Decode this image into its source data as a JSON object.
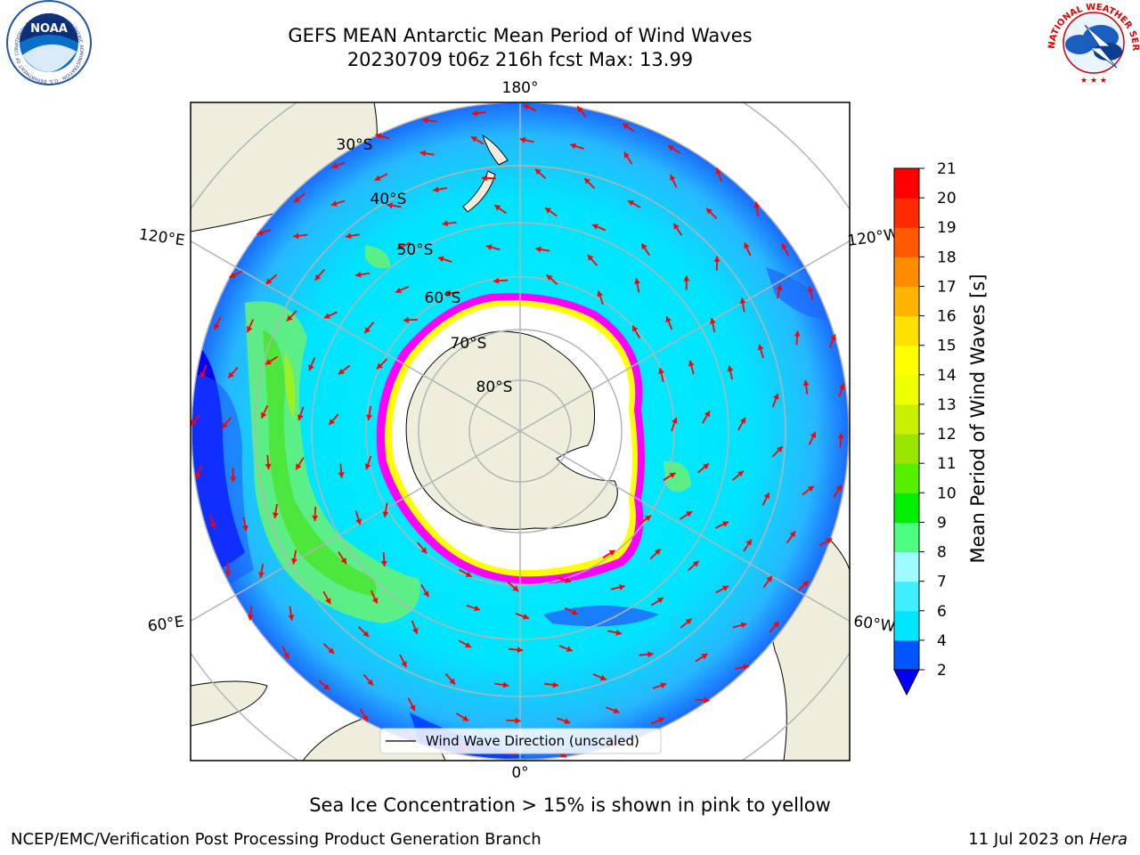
{
  "title": {
    "line1": "GEFS MEAN Antarctic Mean Period of Wind Waves",
    "line2": "20230709 t06z 216h fcst   Max: 13.99"
  },
  "map": {
    "longitude_labels": [
      "180°",
      "120°E",
      "120°W",
      "60°E",
      "60°W",
      "0°"
    ],
    "latitude_labels": [
      "30°S",
      "40°S",
      "50°S",
      "60°S",
      "70°S",
      "80°S"
    ],
    "legend_label": "Wind Wave Direction (unscaled)",
    "arrow_color": "#ff0000",
    "land_color": "#efeedc",
    "ice_edge_colors": [
      "#ff00ff",
      "#ffff00"
    ]
  },
  "colorbar": {
    "title": "Mean Period of Wind Waves [s]",
    "ticks": [
      "2",
      "4",
      "6",
      "7",
      "8",
      "9",
      "10",
      "11",
      "12",
      "13",
      "14",
      "15",
      "16",
      "17",
      "18",
      "19",
      "20",
      "21"
    ],
    "colors": [
      "#0055ff",
      "#00b4ff",
      "#00e6ff",
      "#40f0ff",
      "#9efcff",
      "#4cff80",
      "#00ee00",
      "#55f000",
      "#9ae600",
      "#c8ee00",
      "#eeff00",
      "#ffff00",
      "#ffe000",
      "#ffb400",
      "#ff8c00",
      "#ff5a00",
      "#ff2a00",
      "#ff0000"
    ],
    "extend_color": "#0000ff"
  },
  "logos": {
    "noaa_text": "NOAA",
    "noaa_ring": "NATIONAL OCEANIC AND ATMOSPHERIC ADMINISTRATION · U.S. DEPARTMENT OF COMMERCE",
    "nws_ring": "NATIONAL WEATHER SERVICE"
  },
  "bottom_note": "Sea Ice Concentration > 15% is shown in pink to yellow",
  "footer": {
    "left": "NCEP/EMC/Verification Post Processing Product Generation Branch",
    "right_prefix": "11 Jul 2023 on ",
    "right_host": "Hera"
  }
}
